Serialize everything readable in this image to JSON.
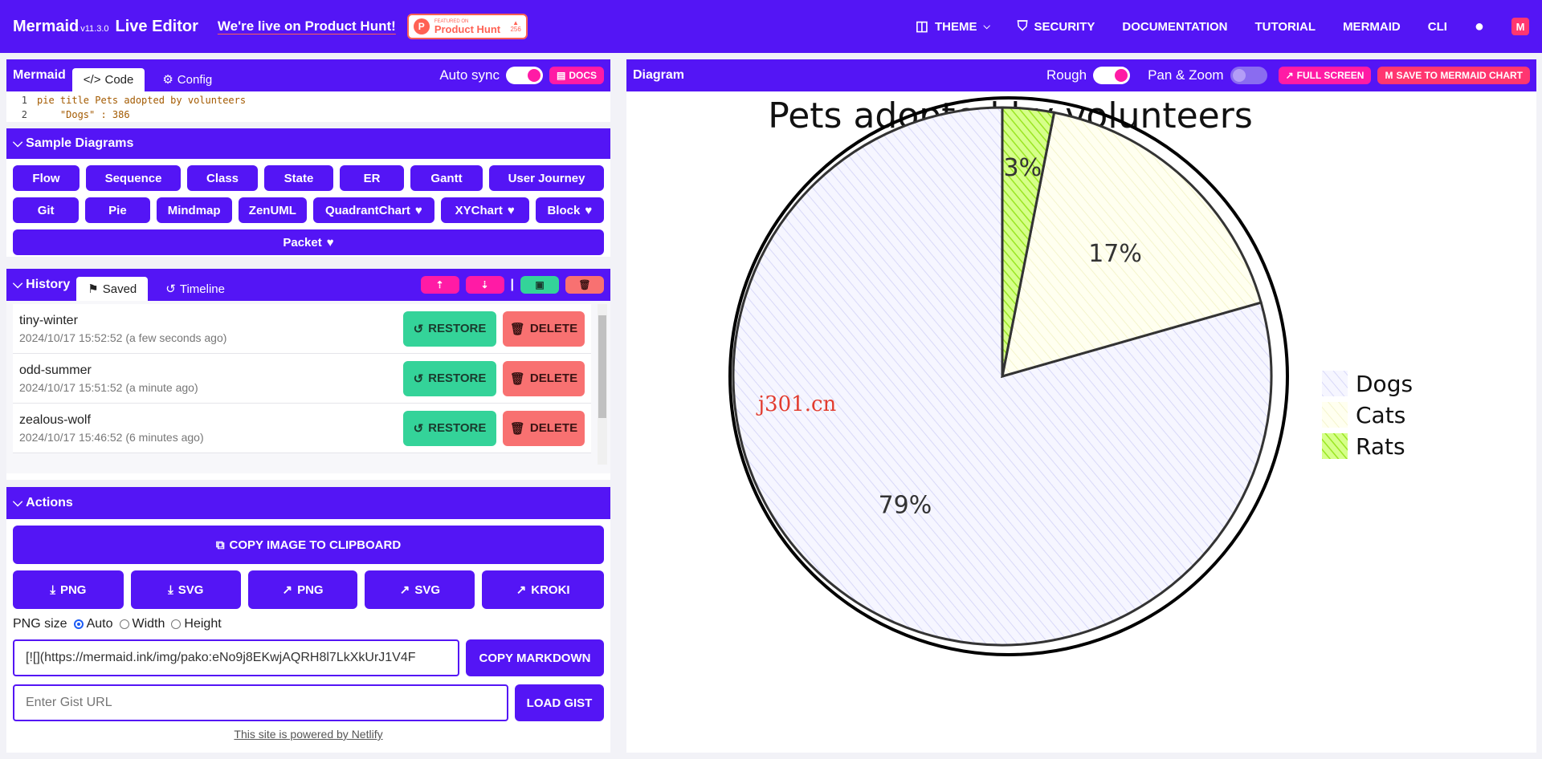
{
  "header": {
    "brand": "Mermaid",
    "version": "v11.3.0",
    "brand_suffix": "Live Editor",
    "product_hunt_link": "We're live on Product Hunt!",
    "badge_featured": "FEATURED ON",
    "badge_name": "Product Hunt",
    "badge_count": "256",
    "nav": [
      "THEME",
      "SECURITY",
      "DOCUMENTATION",
      "TUTORIAL",
      "MERMAID",
      "CLI"
    ]
  },
  "editor": {
    "title": "Mermaid",
    "tab_code": "Code",
    "tab_config": "Config",
    "auto_sync": "Auto sync",
    "docs": "DOCS",
    "lines": [
      {
        "num": "1",
        "text": "pie title Pets adopted by volunteers"
      },
      {
        "num": "2",
        "text": "    \"Dogs\" : 386"
      }
    ]
  },
  "samples": {
    "title": "Sample Diagrams",
    "row1": [
      "Flow",
      "Sequence",
      "Class",
      "State",
      "ER",
      "Gantt",
      "User Journey"
    ],
    "row2": [
      "Git",
      "Pie",
      "Mindmap",
      "ZenUML",
      "QuadrantChart",
      "XYChart",
      "Block"
    ],
    "row3": "Packet"
  },
  "history": {
    "title": "History",
    "tab_saved": "Saved",
    "tab_timeline": "Timeline",
    "restore": "RESTORE",
    "delete": "DELETE",
    "items": [
      {
        "name": "tiny-winter",
        "date": "2024/10/17 15:52:52 (a few seconds ago)"
      },
      {
        "name": "odd-summer",
        "date": "2024/10/17 15:51:52 (a minute ago)"
      },
      {
        "name": "zealous-wolf",
        "date": "2024/10/17 15:46:52 (6 minutes ago)"
      }
    ]
  },
  "actions": {
    "title": "Actions",
    "copy_image": "COPY IMAGE TO CLIPBOARD",
    "buttons": [
      "PNG",
      "SVG",
      "PNG",
      "SVG",
      "KROKI"
    ],
    "png_size": "PNG size",
    "size_options": [
      "Auto",
      "Width",
      "Height"
    ],
    "markdown_value": "[![](https://mermaid.ink/img/pako:eNo9j8EKwjAQRH8l7LkXkUrJ1V4F",
    "copy_markdown": "COPY MARKDOWN",
    "gist_placeholder": "Enter Gist URL",
    "load_gist": "LOAD GIST",
    "footer": "This site is powered by Netlify"
  },
  "diagram": {
    "title": "Diagram",
    "rough": "Rough",
    "pan_zoom": "Pan & Zoom",
    "full_screen": "FULL SCREEN",
    "save_chart": "SAVE TO MERMAID CHART",
    "watermark": "j301.cn"
  },
  "chart_data": {
    "type": "pie",
    "title": "Pets adopted by volunteers",
    "categories": [
      "Dogs",
      "Cats",
      "Rats"
    ],
    "values": [
      386,
      85,
      15
    ],
    "labels": [
      "79%",
      "17%",
      "3%"
    ],
    "colors": [
      "#ececff",
      "#ffffde",
      "#b9ff3f"
    ],
    "legend": "right"
  }
}
